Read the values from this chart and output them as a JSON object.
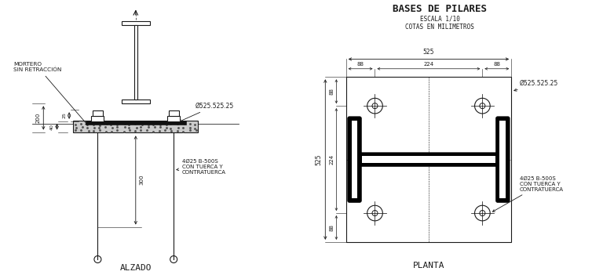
{
  "bg_color": "#ffffff",
  "line_color": "#1a1a1a",
  "title": "BASES DE PILARES",
  "subtitle1": "ESCALA 1/10",
  "subtitle2": "COTAS EN MILIMETROS",
  "label_alzado": "ALZADO",
  "label_planta": "PLANTA",
  "ann_mortero": "MORTERO\nSIN RETRACCIÓN",
  "ann_plate_alzado": "Ø525.525.25",
  "ann_rebar_alzado": "4Ø25 B-500S\nCON TUERCA Y\nCONTRATUERCA",
  "ann_plate_planta": "Ø525.525.25",
  "ann_rebar_planta": "4Ø25 B-500S\nCON TUERCA Y\nCONTRATUERCA",
  "dim_200": "200",
  "dim_40": "40",
  "dim_25": "25",
  "dim_300": "300",
  "dim_525_top": "525",
  "dim_88_left": "88",
  "dim_224_mid": "224",
  "dim_88_right": "88",
  "dim_525_side": "525",
  "dim_224_side": "224",
  "dim_88_bot": "88",
  "dim_88_top_side": "88"
}
